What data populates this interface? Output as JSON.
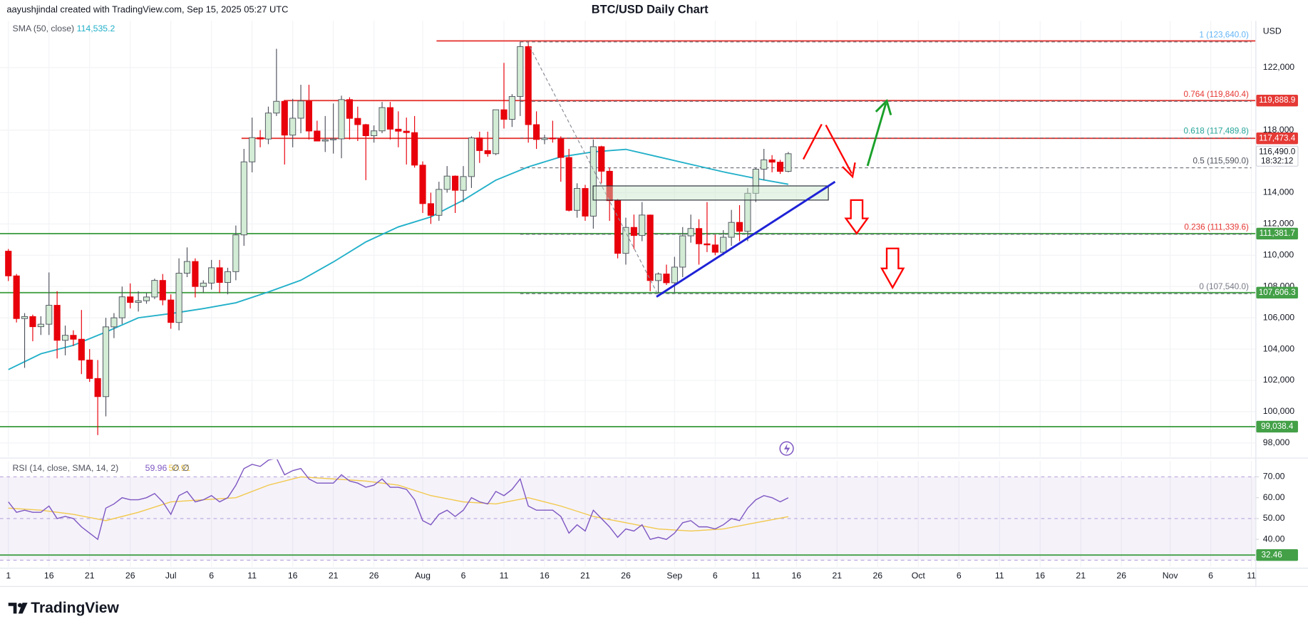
{
  "chart_data": {
    "type": "candlestick",
    "title": "BTC/USD Daily Chart",
    "attribution": "aayushjindal created with TradingView.com, Sep 15, 2025 05:27 UTC",
    "currency": "USD",
    "brand": "TradingView",
    "up_color": "#d3ecd5",
    "down_color": "#e8000b",
    "outline_color": "#50535e",
    "grid": true,
    "xlim": [
      -1.03,
      153.5
    ],
    "xticks": [
      {
        "value": 0,
        "label": "1"
      },
      {
        "value": 5,
        "label": "16"
      },
      {
        "value": 10,
        "label": "21"
      },
      {
        "value": 15,
        "label": "26"
      },
      {
        "value": 20,
        "label": "Jul"
      },
      {
        "value": 25,
        "label": "6"
      },
      {
        "value": 30,
        "label": "11"
      },
      {
        "value": 35,
        "label": "16"
      },
      {
        "value": 40,
        "label": "21"
      },
      {
        "value": 45,
        "label": "26"
      },
      {
        "value": 51,
        "label": "Aug"
      },
      {
        "value": 56,
        "label": "6"
      },
      {
        "value": 61,
        "label": "11"
      },
      {
        "value": 66,
        "label": "16"
      },
      {
        "value": 71,
        "label": "21"
      },
      {
        "value": 76,
        "label": "26"
      },
      {
        "value": 82,
        "label": "Sep"
      },
      {
        "value": 87,
        "label": "6"
      },
      {
        "value": 92,
        "label": "11"
      },
      {
        "value": 97,
        "label": "16"
      },
      {
        "value": 102,
        "label": "21"
      },
      {
        "value": 107,
        "label": "26"
      },
      {
        "value": 112,
        "label": "Oct"
      },
      {
        "value": 117,
        "label": "6"
      },
      {
        "value": 122,
        "label": "11"
      },
      {
        "value": 127,
        "label": "16"
      },
      {
        "value": 132,
        "label": "21"
      },
      {
        "value": 137,
        "label": "26"
      },
      {
        "value": 143,
        "label": "Nov"
      },
      {
        "value": 148,
        "label": "6"
      },
      {
        "value": 153,
        "label": "11"
      }
    ],
    "ylim": [
      97110,
      124985
    ],
    "yticks": [
      {
        "value": 98000,
        "label": "98,000"
      },
      {
        "value": 100000,
        "label": "100,000"
      },
      {
        "value": 102000,
        "label": "102,000"
      },
      {
        "value": 104000,
        "label": "104,000"
      },
      {
        "value": 106000,
        "label": "106,000"
      },
      {
        "value": 108000,
        "label": "108,000"
      },
      {
        "value": 110000,
        "label": "110,000"
      },
      {
        "value": 112000,
        "label": "112,000"
      },
      {
        "value": 114000,
        "label": "114,000"
      },
      {
        "value": 118000,
        "label": "118,000"
      },
      {
        "value": 122000,
        "label": "122,000"
      }
    ],
    "open": [
      110260,
      108680,
      105950,
      106080,
      105430,
      105590,
      106800,
      104560,
      104880,
      104630,
      103300,
      102120,
      100960,
      105420,
      106000,
      107340,
      106980,
      107090,
      107330,
      108390,
      107140,
      105700,
      108850,
      109600,
      108000,
      108220,
      109200,
      108260,
      108950,
      111300,
      115970,
      117520,
      117430,
      119090,
      119840,
      117680,
      118760,
      119860,
      117940,
      117300,
      117380,
      117440,
      119950,
      118750,
      118350,
      117640,
      117950,
      119440,
      118060,
      117930,
      117840,
      115760,
      113300,
      112550,
      114210,
      115060,
      114150,
      115030,
      117500,
      116690,
      116490,
      119300,
      118690,
      120150,
      123340,
      118350,
      117400,
      117490,
      117450,
      116250,
      112870,
      114270,
      112500,
      116940,
      115370,
      113490,
      110120,
      111780,
      111260,
      112570,
      108380,
      108800,
      108240,
      109240,
      111240,
      111710,
      110730,
      110660,
      110190,
      111150,
      112100,
      111530,
      113960,
      115500,
      116100,
      115950,
      115360
    ],
    "high": [
      110400,
      108800,
      106300,
      106200,
      106100,
      108900,
      107700,
      105500,
      105200,
      106500,
      104000,
      103300,
      106000,
      106300,
      108000,
      108200,
      107700,
      107600,
      108500,
      108800,
      107500,
      109800,
      110500,
      109800,
      108400,
      109700,
      109700,
      109200,
      111900,
      116800,
      118800,
      118000,
      119500,
      123200,
      119900,
      120000,
      120900,
      120900,
      118600,
      118900,
      119700,
      120200,
      120100,
      119500,
      118400,
      118300,
      119800,
      119800,
      119200,
      118800,
      118900,
      116000,
      114000,
      114700,
      115700,
      115100,
      115700,
      117600,
      117900,
      117900,
      119300,
      122300,
      120300,
      123640,
      123600,
      119200,
      117700,
      118600,
      117600,
      116800,
      114600,
      114500,
      117400,
      117000,
      115600,
      113600,
      112400,
      112600,
      113400,
      112600,
      108900,
      109400,
      109900,
      111800,
      112600,
      112300,
      113400,
      111300,
      111600,
      112900,
      113200,
      114300,
      115600,
      116800,
      116400,
      116100,
      116600
    ],
    "low": [
      108350,
      105700,
      102800,
      104500,
      104900,
      104900,
      103400,
      103600,
      104200,
      102400,
      101900,
      98500,
      99700,
      104700,
      105600,
      106600,
      106400,
      106900,
      107200,
      106800,
      105300,
      105200,
      108600,
      107300,
      107600,
      107800,
      107600,
      107500,
      108400,
      110600,
      115300,
      116900,
      117100,
      118900,
      115800,
      116900,
      117800,
      117400,
      117300,
      116600,
      116500,
      116200,
      117400,
      117300,
      114800,
      117200,
      117800,
      117400,
      116900,
      115800,
      115600,
      112700,
      112000,
      112200,
      114000,
      112700,
      113400,
      114300,
      115900,
      116300,
      116400,
      118100,
      118200,
      118900,
      117200,
      116800,
      117100,
      117200,
      114700,
      112800,
      112400,
      112200,
      111700,
      114600,
      112200,
      109800,
      109400,
      110400,
      110900,
      107700,
      107540,
      108100,
      107600,
      108600,
      110800,
      109400,
      110200,
      110000,
      110000,
      110600,
      110900,
      110900,
      113400,
      114800,
      115300,
      115200,
      115300
    ],
    "close": [
      108680,
      105950,
      106080,
      105430,
      105590,
      106800,
      104560,
      104880,
      104630,
      103300,
      102120,
      100960,
      105420,
      106000,
      107340,
      106980,
      107090,
      107330,
      108390,
      107140,
      105700,
      108850,
      109600,
      108000,
      108220,
      109200,
      108260,
      108950,
      111300,
      115970,
      117520,
      117430,
      119090,
      119840,
      117680,
      118760,
      119860,
      117940,
      117300,
      117380,
      117440,
      119950,
      118750,
      118350,
      117640,
      117950,
      119440,
      118060,
      117930,
      117840,
      115760,
      113300,
      112550,
      114210,
      115060,
      114150,
      115030,
      117500,
      116690,
      116490,
      119300,
      118690,
      120150,
      123340,
      118350,
      117400,
      117490,
      117450,
      116250,
      112870,
      114270,
      112500,
      116940,
      115370,
      113490,
      110120,
      111780,
      111260,
      112570,
      108380,
      108800,
      108240,
      109240,
      111240,
      111710,
      110730,
      110660,
      110190,
      111150,
      112100,
      111530,
      113960,
      115500,
      116100,
      115950,
      115360,
      116490
    ],
    "last_price": {
      "value": 116490,
      "label": "116,490.0",
      "countdown": "18:32:12"
    },
    "sma": {
      "name": "SMA (50, close)",
      "value_label": "114,535.2",
      "color": "#22b0c9",
      "x": [
        0,
        4,
        8,
        12,
        16,
        20,
        24,
        28,
        32,
        36,
        40,
        44,
        48,
        52,
        56,
        60,
        64,
        68,
        72,
        76,
        80,
        84,
        88,
        92,
        96
      ],
      "values": [
        102690,
        103700,
        104240,
        105090,
        106000,
        106270,
        106590,
        106960,
        107650,
        108400,
        109570,
        110850,
        111810,
        112450,
        113520,
        114800,
        115650,
        116290,
        116610,
        116770,
        116290,
        115810,
        115330,
        114910,
        114535.2
      ]
    },
    "levels": [
      {
        "value": 123700,
        "color": "#e53935",
        "x_start": 52.7
      },
      {
        "value": 119888.9,
        "label": "119,888.9",
        "color": "#e53935",
        "x_start": 33.9
      },
      {
        "value": 117473.4,
        "label": "117,473.4",
        "color": "#e53935",
        "x_start": 28.7
      },
      {
        "value": 111381.7,
        "label": "111,381.7",
        "color": "#43a047"
      },
      {
        "value": 107606.3,
        "label": "107,606.3",
        "color": "#43a047"
      },
      {
        "value": 99038.4,
        "label": "99,038.4",
        "color": "#43a047"
      }
    ],
    "fib": {
      "x_start": 63,
      "levels": [
        {
          "value": 123640,
          "label": "1 (123,640.0)",
          "color": "#64b5f6"
        },
        {
          "value": 119840.4,
          "label": "0.764 (119,840.4)",
          "color": "#e53935"
        },
        {
          "value": 117489.8,
          "label": "0.618 (117,489.8)",
          "color": "#26a69a"
        },
        {
          "value": 115590,
          "label": "0.5 (115,590.0)",
          "color": "#50535e"
        },
        {
          "value": 111339.6,
          "label": "0.236 (111,339.6)",
          "color": "#e53935"
        },
        {
          "value": 107540,
          "label": "0 (107,540.0)",
          "color": "#787b86"
        }
      ]
    },
    "rsi": {
      "name": "RSI (14, close, SMA, 14, 2)",
      "extra": [
        "∅",
        "∅"
      ],
      "color": "#7e57c2",
      "ylim": [
        26.8,
        77.6
      ],
      "yticks": [
        {
          "value": 70,
          "label": "70.00"
        },
        {
          "value": 60,
          "label": "60.00"
        },
        {
          "value": 50,
          "label": "50.00"
        },
        {
          "value": 40,
          "label": "40.00"
        }
      ],
      "bands": [
        70,
        50,
        30
      ],
      "values": [
        58,
        53,
        54,
        53,
        53,
        56,
        50,
        51,
        50,
        46,
        43,
        40,
        55,
        57,
        60,
        59,
        59,
        60,
        62,
        58,
        52,
        61,
        63,
        58,
        59,
        61,
        58,
        60,
        66,
        74,
        76,
        75,
        78,
        79,
        71,
        73,
        74,
        69,
        67,
        67,
        67,
        71,
        68,
        67,
        65,
        66,
        69,
        65,
        65,
        64,
        59,
        49,
        47,
        52,
        54,
        51,
        54,
        60,
        58,
        57,
        63,
        61,
        64,
        69,
        56,
        54,
        54,
        54,
        51,
        43,
        47,
        44,
        54,
        50,
        46,
        41,
        45,
        44,
        47,
        40,
        41,
        40,
        43,
        48,
        49,
        46,
        46,
        45,
        47,
        50,
        49,
        55,
        59,
        61,
        60,
        58,
        59.96
      ],
      "sma": {
        "color": "#f2c94c",
        "x": [
          0,
          4,
          8,
          12,
          16,
          20,
          24,
          28,
          32,
          36,
          40,
          44,
          48,
          52,
          56,
          60,
          64,
          68,
          72,
          76,
          80,
          84,
          88,
          92,
          96
        ],
        "values": [
          55,
          54,
          52,
          49,
          53,
          58,
          59,
          60,
          66,
          70,
          69,
          68,
          66,
          61,
          58,
          57,
          60,
          56,
          51,
          48,
          45,
          44,
          45,
          48,
          50.91
        ]
      },
      "level": {
        "value": 32.46,
        "label": "32.46",
        "color": "#43a047"
      }
    }
  }
}
